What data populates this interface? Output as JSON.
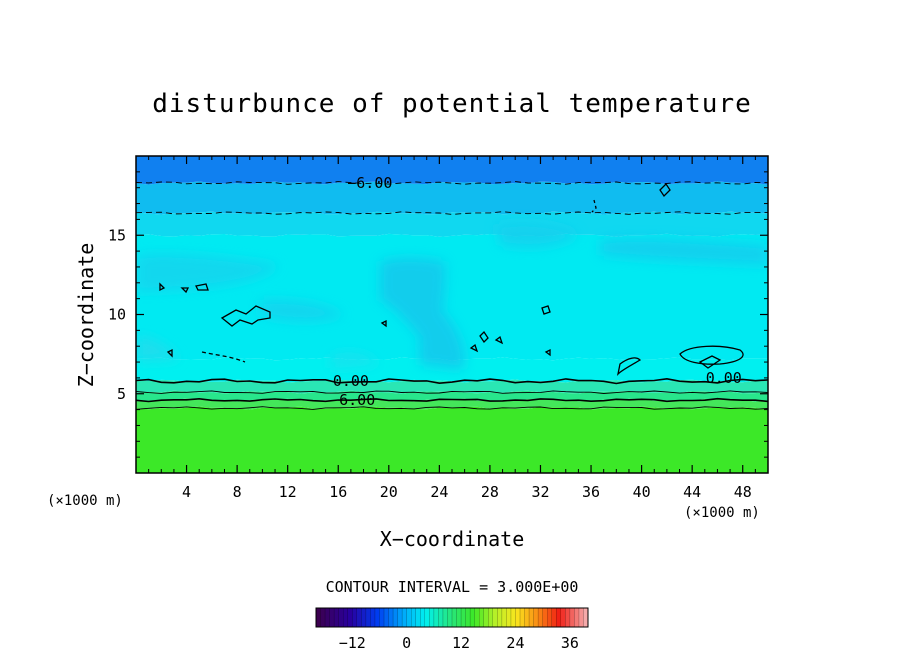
{
  "chart_data": {
    "type": "heatmap",
    "title": "disturbunce of potential temperature",
    "xlabel": "X−coordinate",
    "ylabel": "Z−coordinate",
    "x_unit": "(×1000 m)",
    "z_unit": "(×1000 m)",
    "xlim": [
      0,
      50
    ],
    "ylim": [
      0,
      20
    ],
    "x_ticks": [
      4,
      8,
      12,
      16,
      20,
      24,
      28,
      32,
      36,
      40,
      44,
      48
    ],
    "y_ticks": [
      5,
      10,
      15
    ],
    "contour_interval_text": "CONTOUR INTERVAL = 3.000E+00",
    "contour_interval": 3.0,
    "contour_labels": [
      {
        "text": "−6.00",
        "x": 18.5,
        "z": 18.3
      },
      {
        "text": "0.00",
        "x": 17,
        "z": 5.8
      },
      {
        "text": "0.00",
        "x": 46.5,
        "z": 6.0
      },
      {
        "text": "6.00",
        "x": 17.5,
        "z": 4.6
      }
    ],
    "contour_lines": [
      {
        "level": -6,
        "z": 18.3,
        "style": "dashed"
      },
      {
        "level": -3,
        "z": 16.4,
        "style": "dashed"
      },
      {
        "level": 0,
        "z": 5.8,
        "style": "solid"
      },
      {
        "level": 3,
        "z": 5.1,
        "style": "solid"
      },
      {
        "level": 6,
        "z": 4.6,
        "style": "solid"
      },
      {
        "level": 9,
        "z": 4.1,
        "style": "solid"
      }
    ],
    "value_bands": [
      {
        "z_from": 0,
        "z_to": 4.1,
        "value": 10,
        "color": "#3ce828"
      },
      {
        "z_from": 4.1,
        "z_to": 4.6,
        "value": 7,
        "color": "#44e65a"
      },
      {
        "z_from": 4.6,
        "z_to": 5.1,
        "value": 4,
        "color": "#28e68c"
      },
      {
        "z_from": 5.1,
        "z_to": 5.8,
        "value": 1,
        "color": "#2ae6b4"
      },
      {
        "z_from": 5.8,
        "z_to": 7.2,
        "value": -1,
        "color": "#00f0f0"
      },
      {
        "z_from": 7.2,
        "z_to": 15.0,
        "value": -2,
        "color": "#00eaf2"
      },
      {
        "z_from": 15.0,
        "z_to": 16.4,
        "value": -3,
        "color": "#10d8f0"
      },
      {
        "z_from": 16.4,
        "z_to": 18.3,
        "value": -5,
        "color": "#10bcf0"
      },
      {
        "z_from": 18.3,
        "z_to": 20,
        "value": -7,
        "color": "#1080f0"
      }
    ],
    "colorbar": {
      "min": -20,
      "max": 40,
      "ticks": [
        -12,
        0,
        12,
        24,
        36
      ]
    }
  }
}
